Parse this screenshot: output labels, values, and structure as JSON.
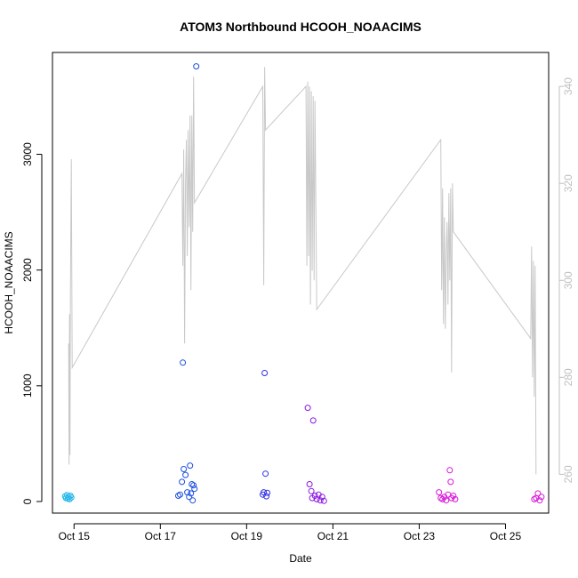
{
  "chart_data": {
    "type": "scatter",
    "title": "ATOM3 Northbound HCOOH_NOAACIMS",
    "xlabel": "Date",
    "ylabel": "HCOOH_NOAACIMS",
    "grid": false,
    "x_ticks": [
      "Oct 15",
      "Oct 17",
      "Oct 19",
      "Oct 21",
      "Oct 23",
      "Oct 25"
    ],
    "xlim": [
      "2017-10-14T12:00",
      "2017-10-26T00:00"
    ],
    "y_ticks": [
      0,
      1000,
      2000,
      3000
    ],
    "ylim": [
      -100,
      3880
    ],
    "y2_ticks": [
      260,
      280,
      300,
      320,
      340
    ],
    "y2lim": [
      252,
      347
    ],
    "line_color": "#c8c8c8",
    "series": [
      {
        "color": "#1fb5e8",
        "points": [
          [
            "2017-10-14T19:00",
            45
          ],
          [
            "2017-10-14T19:30",
            30
          ],
          [
            "2017-10-14T20:00",
            55
          ],
          [
            "2017-10-14T20:30",
            25
          ],
          [
            "2017-10-14T21:00",
            40
          ],
          [
            "2017-10-14T21:30",
            20
          ],
          [
            "2017-10-14T22:00",
            50
          ],
          [
            "2017-10-14T22:30",
            35
          ]
        ]
      },
      {
        "color": "#1a4fe0",
        "points": [
          [
            "2017-10-17T10:00",
            50
          ],
          [
            "2017-10-17T11:00",
            60
          ],
          [
            "2017-10-17T12:00",
            170
          ],
          [
            "2017-10-17T12:30",
            1200
          ],
          [
            "2017-10-17T13:00",
            280
          ],
          [
            "2017-10-17T14:00",
            230
          ],
          [
            "2017-10-17T15:00",
            80
          ],
          [
            "2017-10-17T16:00",
            40
          ],
          [
            "2017-10-17T16:30",
            310
          ],
          [
            "2017-10-17T17:00",
            70
          ],
          [
            "2017-10-17T17:30",
            150
          ],
          [
            "2017-10-17T18:00",
            10
          ],
          [
            "2017-10-17T18:30",
            140
          ],
          [
            "2017-10-17T19:00",
            110
          ],
          [
            "2017-10-17T20:00",
            3760
          ]
        ]
      },
      {
        "color": "#3030e8",
        "points": [
          [
            "2017-10-19T09:00",
            60
          ],
          [
            "2017-10-19T09:30",
            80
          ],
          [
            "2017-10-19T10:00",
            1110
          ],
          [
            "2017-10-19T10:30",
            240
          ],
          [
            "2017-10-19T11:00",
            45
          ],
          [
            "2017-10-19T11:30",
            75
          ]
        ]
      },
      {
        "color": "#8a18e0",
        "points": [
          [
            "2017-10-20T10:00",
            810
          ],
          [
            "2017-10-20T11:00",
            150
          ],
          [
            "2017-10-20T12:00",
            90
          ],
          [
            "2017-10-20T12:30",
            30
          ],
          [
            "2017-10-20T13:00",
            700
          ],
          [
            "2017-10-20T14:00",
            50
          ],
          [
            "2017-10-20T15:00",
            20
          ],
          [
            "2017-10-20T16:00",
            60
          ],
          [
            "2017-10-20T17:00",
            10
          ],
          [
            "2017-10-20T18:00",
            40
          ],
          [
            "2017-10-20T19:00",
            5
          ]
        ]
      },
      {
        "color": "#d818d8",
        "points": [
          [
            "2017-10-23T11:00",
            80
          ],
          [
            "2017-10-23T12:00",
            30
          ],
          [
            "2017-10-23T13:00",
            20
          ],
          [
            "2017-10-23T14:00",
            40
          ],
          [
            "2017-10-23T15:00",
            10
          ],
          [
            "2017-10-23T16:00",
            60
          ],
          [
            "2017-10-23T17:00",
            270
          ],
          [
            "2017-10-23T17:30",
            170
          ],
          [
            "2017-10-23T18:00",
            30
          ],
          [
            "2017-10-23T19:00",
            50
          ],
          [
            "2017-10-23T20:00",
            20
          ],
          [
            "2017-10-25T16:00",
            20
          ],
          [
            "2017-10-25T17:00",
            30
          ],
          [
            "2017-10-25T18:00",
            70
          ],
          [
            "2017-10-25T19:00",
            10
          ],
          [
            "2017-10-25T20:00",
            40
          ]
        ]
      }
    ],
    "line_series": {
      "axis": "right",
      "points": [
        [
          "2017-10-14T21:00",
          287
        ],
        [
          "2017-10-14T21:15",
          262
        ],
        [
          "2017-10-14T21:30",
          293
        ],
        [
          "2017-10-14T21:45",
          264
        ],
        [
          "2017-10-14T22:00",
          297
        ],
        [
          "2017-10-14T22:30",
          325
        ],
        [
          "2017-10-14T23:00",
          282
        ],
        [
          "2017-10-17T12:00",
          322
        ],
        [
          "2017-10-17T12:30",
          303
        ],
        [
          "2017-10-17T13:00",
          327
        ],
        [
          "2017-10-17T13:30",
          287
        ],
        [
          "2017-10-17T14:00",
          320
        ],
        [
          "2017-10-17T14:30",
          329
        ],
        [
          "2017-10-17T15:00",
          305
        ],
        [
          "2017-10-17T15:30",
          331
        ],
        [
          "2017-10-17T16:00",
          311
        ],
        [
          "2017-10-17T16:30",
          334
        ],
        [
          "2017-10-17T17:00",
          298
        ],
        [
          "2017-10-17T17:30",
          334
        ],
        [
          "2017-10-17T18:00",
          310
        ],
        [
          "2017-10-17T18:30",
          342
        ],
        [
          "2017-10-17T19:00",
          316
        ],
        [
          "2017-10-19T09:00",
          340
        ],
        [
          "2017-10-19T09:30",
          299
        ],
        [
          "2017-10-19T10:00",
          344
        ],
        [
          "2017-10-19T10:30",
          331
        ],
        [
          "2017-10-20T09:00",
          340
        ],
        [
          "2017-10-20T09:30",
          303
        ],
        [
          "2017-10-20T10:00",
          341
        ],
        [
          "2017-10-20T10:30",
          305
        ],
        [
          "2017-10-20T11:00",
          340
        ],
        [
          "2017-10-20T11:30",
          295
        ],
        [
          "2017-10-20T12:00",
          339
        ],
        [
          "2017-10-20T12:30",
          302
        ],
        [
          "2017-10-20T13:00",
          338
        ],
        [
          "2017-10-20T13:30",
          300
        ],
        [
          "2017-10-20T14:00",
          337
        ],
        [
          "2017-10-20T15:00",
          294
        ],
        [
          "2017-10-23T12:00",
          329
        ],
        [
          "2017-10-23T12:30",
          298
        ],
        [
          "2017-10-23T13:00",
          319
        ],
        [
          "2017-10-23T13:30",
          291
        ],
        [
          "2017-10-23T14:00",
          313
        ],
        [
          "2017-10-23T14:30",
          290
        ],
        [
          "2017-10-23T15:00",
          306
        ],
        [
          "2017-10-23T15:30",
          312
        ],
        [
          "2017-10-23T16:00",
          295
        ],
        [
          "2017-10-23T16:30",
          318
        ],
        [
          "2017-10-23T17:00",
          300
        ],
        [
          "2017-10-23T17:30",
          319
        ],
        [
          "2017-10-23T18:00",
          281
        ],
        [
          "2017-10-23T18:30",
          320
        ],
        [
          "2017-10-23T19:00",
          310
        ],
        [
          "2017-10-25T14:00",
          288
        ],
        [
          "2017-10-25T14:30",
          307
        ],
        [
          "2017-10-25T15:00",
          280
        ],
        [
          "2017-10-25T15:30",
          304
        ],
        [
          "2017-10-25T16:00",
          276
        ],
        [
          "2017-10-25T16:30",
          303
        ],
        [
          "2017-10-25T17:00",
          260
        ]
      ]
    }
  }
}
